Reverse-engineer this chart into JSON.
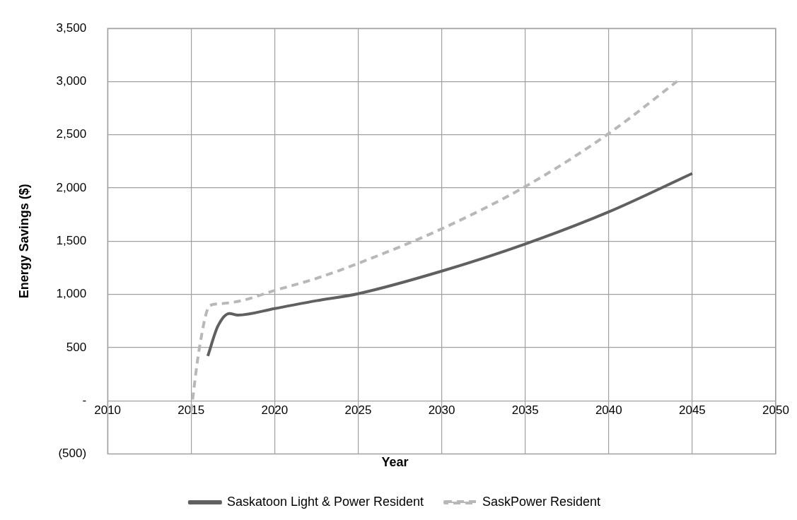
{
  "chart_data": {
    "type": "line",
    "xlabel": "Year",
    "ylabel": "Energy Savings ($)",
    "xlim": [
      2010,
      2050
    ],
    "xticks": [
      2010,
      2015,
      2020,
      2025,
      2030,
      2035,
      2040,
      2045,
      2050
    ],
    "ylim": [
      -500,
      3500
    ],
    "yticks": [
      {
        "value": -500,
        "label": "(500)"
      },
      {
        "value": 0,
        "label": "-"
      },
      {
        "value": 500,
        "label": "500"
      },
      {
        "value": 1000,
        "label": "1,000"
      },
      {
        "value": 1500,
        "label": "1,500"
      },
      {
        "value": 2000,
        "label": "2,000"
      },
      {
        "value": 2500,
        "label": "2,500"
      },
      {
        "value": 3000,
        "label": "3,000"
      },
      {
        "value": 3500,
        "label": "3,500"
      }
    ],
    "grid": true,
    "legend": "bottom",
    "marker": "none",
    "series": [
      {
        "name": "Saskatoon Light & Power Resident",
        "color": "#606060",
        "line_style": "solid",
        "x": [
          2016,
          2016.6,
          2017.3,
          2017.8,
          2020,
          2022.5,
          2025,
          2030,
          2035,
          2040,
          2045
        ],
        "values": [
          420,
          700,
          820,
          805,
          866,
          940,
          1006,
          1218,
          1473,
          1775,
          2136
        ]
      },
      {
        "name": "SaskPower Resident",
        "color": "#b8b8b8",
        "line_style": "dashed",
        "x": [
          2015,
          2015.5,
          2016.1,
          2016.6,
          2018,
          2020,
          2022.5,
          2025,
          2030,
          2035,
          2040,
          2044.1
        ],
        "values": [
          -100,
          500,
          890,
          910,
          940,
          1036,
          1150,
          1291,
          1616,
          2013,
          2512,
          3003
        ]
      }
    ]
  }
}
